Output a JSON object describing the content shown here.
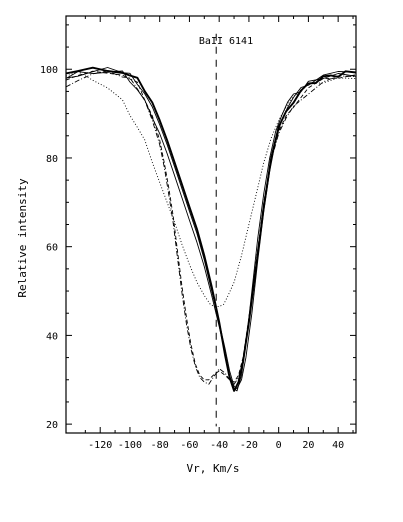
{
  "chart_data": {
    "type": "line",
    "title": "BaII 6141",
    "xlabel": "Vr, Km/s",
    "ylabel": "Relative intensity",
    "xlim": [
      -143,
      52
    ],
    "ylim": [
      18,
      112
    ],
    "x_ticks": [
      -120,
      -100,
      -80,
      -60,
      -40,
      -20,
      0,
      20,
      40
    ],
    "y_ticks": [
      20,
      40,
      60,
      80,
      100
    ],
    "reference_line_x": -42,
    "grid": false,
    "legend": "none",
    "series": [
      {
        "style": "solid-thick",
        "x": [
          -143,
          -135,
          -125,
          -115,
          -105,
          -100,
          -95,
          -90,
          -85,
          -80,
          -75,
          -70,
          -65,
          -60,
          -55,
          -50,
          -45,
          -40,
          -36,
          -33,
          -30,
          -27,
          -24,
          -20,
          -15,
          -10,
          -5,
          0,
          5,
          10,
          15,
          20,
          25,
          30,
          35,
          40,
          45,
          52
        ],
        "y": [
          98.5,
          99.5,
          99.8,
          100,
          99.5,
          98.8,
          97.5,
          95.5,
          92.5,
          88.5,
          84,
          79,
          74,
          69,
          64,
          58,
          51,
          43,
          35.5,
          30.5,
          27.5,
          29.5,
          34,
          43,
          56,
          69,
          80,
          87,
          90.5,
          93,
          95,
          96.5,
          97.5,
          98,
          98.5,
          98.8,
          99,
          99
        ]
      },
      {
        "style": "solid-thin",
        "x": [
          -143,
          -135,
          -125,
          -115,
          -105,
          -100,
          -95,
          -90,
          -85,
          -80,
          -75,
          -70,
          -65,
          -60,
          -55,
          -50,
          -45,
          -40,
          -36,
          -33,
          -30,
          -28,
          -25,
          -22,
          -18,
          -14,
          -10,
          -6,
          -2,
          2,
          6,
          10,
          15,
          20,
          30,
          40,
          52
        ],
        "y": [
          98.5,
          99,
          99.5,
          99.8,
          99.5,
          98.5,
          97,
          94.5,
          91.5,
          87.5,
          83,
          78,
          73,
          68,
          63,
          57,
          50,
          43,
          37,
          32,
          28.5,
          28,
          30,
          35,
          45,
          57,
          68,
          77,
          84,
          88.5,
          91.5,
          93.5,
          95.5,
          97,
          98.5,
          99,
          99
        ]
      },
      {
        "style": "solid-thin",
        "x": [
          -143,
          -135,
          -125,
          -115,
          -105,
          -100,
          -95,
          -90,
          -85,
          -80,
          -75,
          -70,
          -65,
          -60,
          -55,
          -50,
          -45,
          -40,
          -36,
          -33,
          -30,
          -28,
          -25,
          -22,
          -18,
          -14,
          -10,
          -6,
          -2,
          2,
          6,
          10,
          15,
          20,
          30,
          40,
          52
        ],
        "y": [
          98,
          99,
          99.5,
          99.5,
          99,
          97.5,
          95.5,
          92.5,
          89,
          85.5,
          81,
          76,
          71,
          66,
          61,
          55.5,
          49,
          42,
          36,
          31,
          28,
          27.5,
          31,
          38,
          50,
          62,
          72,
          80,
          86,
          89.5,
          92,
          94,
          95.5,
          97,
          98.5,
          99,
          99
        ]
      },
      {
        "style": "dashed",
        "x": [
          -143,
          -135,
          -125,
          -115,
          -105,
          -100,
          -95,
          -90,
          -85,
          -80,
          -77,
          -74,
          -71,
          -68,
          -65,
          -62,
          -59,
          -56,
          -53,
          -50,
          -47,
          -44,
          -40,
          -36,
          -33,
          -30,
          -27,
          -24,
          -20,
          -15,
          -10,
          -5,
          0,
          5,
          10,
          20,
          30,
          40,
          52
        ],
        "y": [
          97,
          98.5,
          99,
          99.5,
          99,
          98,
          96.5,
          93.5,
          89.5,
          84,
          79,
          73.5,
          67,
          59,
          51,
          44,
          38,
          33.5,
          31,
          30,
          30,
          31,
          32,
          31,
          30,
          29.5,
          31,
          35,
          44,
          57,
          70,
          80,
          86,
          89.5,
          92,
          95.5,
          97.5,
          98.5,
          98.5
        ]
      },
      {
        "style": "dash-dot",
        "x": [
          -143,
          -135,
          -125,
          -115,
          -105,
          -100,
          -95,
          -90,
          -85,
          -80,
          -77,
          -74,
          -71,
          -68,
          -65,
          -62,
          -59,
          -56,
          -53,
          -50,
          -47,
          -44,
          -40,
          -36,
          -33,
          -30,
          -27,
          -24,
          -20,
          -15,
          -10,
          -5,
          0,
          5,
          10,
          20,
          30,
          40,
          52
        ],
        "y": [
          96.5,
          98,
          99,
          99,
          98.5,
          97.5,
          96,
          93,
          88.5,
          83,
          78,
          72,
          65.5,
          57.5,
          49.5,
          42.5,
          37,
          33,
          30.5,
          29.5,
          29,
          30.5,
          32.5,
          31.5,
          30,
          29,
          30.5,
          34.5,
          43.5,
          56.5,
          69.5,
          79.5,
          85.5,
          89,
          91.5,
          95,
          97,
          98,
          98
        ]
      },
      {
        "style": "dotted",
        "x": [
          -143,
          -135,
          -125,
          -115,
          -105,
          -100,
          -95,
          -90,
          -85,
          -80,
          -75,
          -70,
          -65,
          -60,
          -55,
          -50,
          -46,
          -43,
          -40,
          -37,
          -34,
          -30,
          -25,
          -20,
          -15,
          -10,
          -5,
          0,
          5,
          10,
          15,
          20,
          30,
          40,
          52
        ],
        "y": [
          98.5,
          99,
          98,
          96,
          92.5,
          90,
          87,
          83.5,
          79,
          74.5,
          70,
          65.5,
          60.5,
          56,
          52,
          49,
          47,
          46.5,
          46.5,
          47,
          49,
          52,
          58,
          65,
          72,
          79,
          84.5,
          88.5,
          91.5,
          93.5,
          95.5,
          96.5,
          97.5,
          98,
          98.5
        ]
      }
    ]
  }
}
